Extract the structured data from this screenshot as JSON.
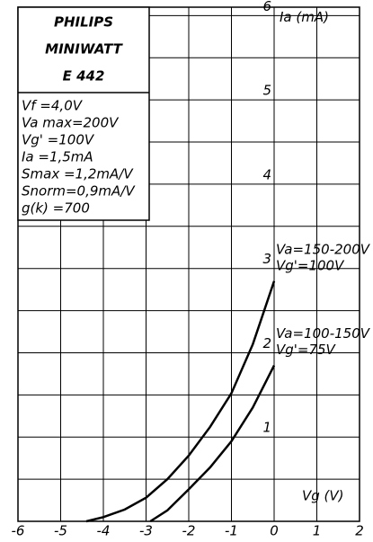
{
  "chart_data": {
    "type": "line",
    "title_lines": [
      "PHILIPS",
      "MINIWATT",
      "E 442"
    ],
    "spec_lines": [
      "Vf =4,0V",
      "Va max=200V",
      "Vg' =100V",
      "Ia =1,5mA",
      "Smax =1,2mA/V",
      "Snorm=0,9mA/V",
      "g(k) =700"
    ],
    "x_label": "Vg (V)",
    "y_label": "Ia (mA)",
    "xlim": [
      -6,
      2
    ],
    "ylim": [
      0,
      6.1
    ],
    "xticks": [
      -6,
      -5,
      -4,
      -3,
      -2,
      -1,
      0,
      1,
      2
    ],
    "yticks": [
      1,
      2,
      3,
      4,
      5,
      6
    ],
    "y_minor_ticks": [
      0.5,
      1.5,
      2.5,
      3.5,
      4.5,
      5.5
    ],
    "grid": true,
    "color": "#000000",
    "series": [
      {
        "label": [
          "Va=150-200V",
          "Vg'=100V"
        ],
        "x": [
          -4.4,
          -4,
          -3.5,
          -3,
          -2.5,
          -2,
          -1.5,
          -1,
          -0.5,
          0
        ],
        "values": [
          0,
          0.05,
          0.14,
          0.28,
          0.5,
          0.78,
          1.12,
          1.52,
          2.1,
          2.85
        ]
      },
      {
        "label": [
          "Va=100-150V",
          "Vg'=75V"
        ],
        "x": [
          -2.9,
          -2.5,
          -2,
          -1.5,
          -1,
          -0.5,
          0
        ],
        "values": [
          0,
          0.13,
          0.38,
          0.64,
          0.95,
          1.35,
          1.85
        ]
      }
    ]
  }
}
